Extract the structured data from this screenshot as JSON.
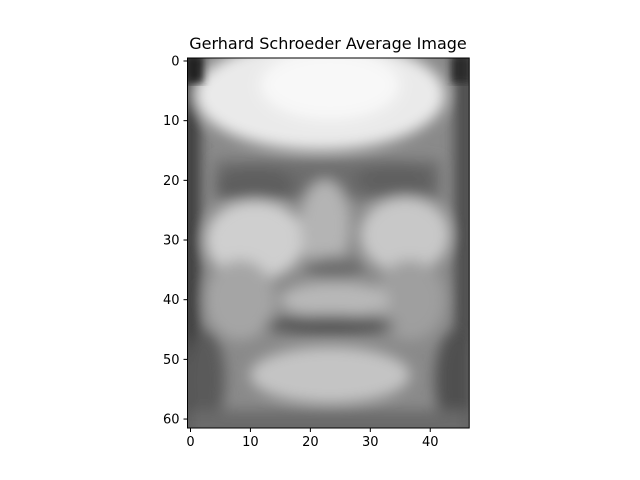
{
  "chart_data": {
    "type": "heatmap",
    "title": "Gerhard Schroeder Average Image",
    "xlabel": "",
    "ylabel": "",
    "colormap": "gray",
    "image_shape": [
      62,
      47
    ],
    "xlim": [
      -0.5,
      46.5
    ],
    "ylim": [
      61.5,
      -0.5
    ],
    "x_ticks": [
      0,
      10,
      20,
      30,
      40
    ],
    "y_ticks": [
      0,
      10,
      20,
      30,
      40,
      50,
      60
    ],
    "grid": false,
    "legend": false
  }
}
